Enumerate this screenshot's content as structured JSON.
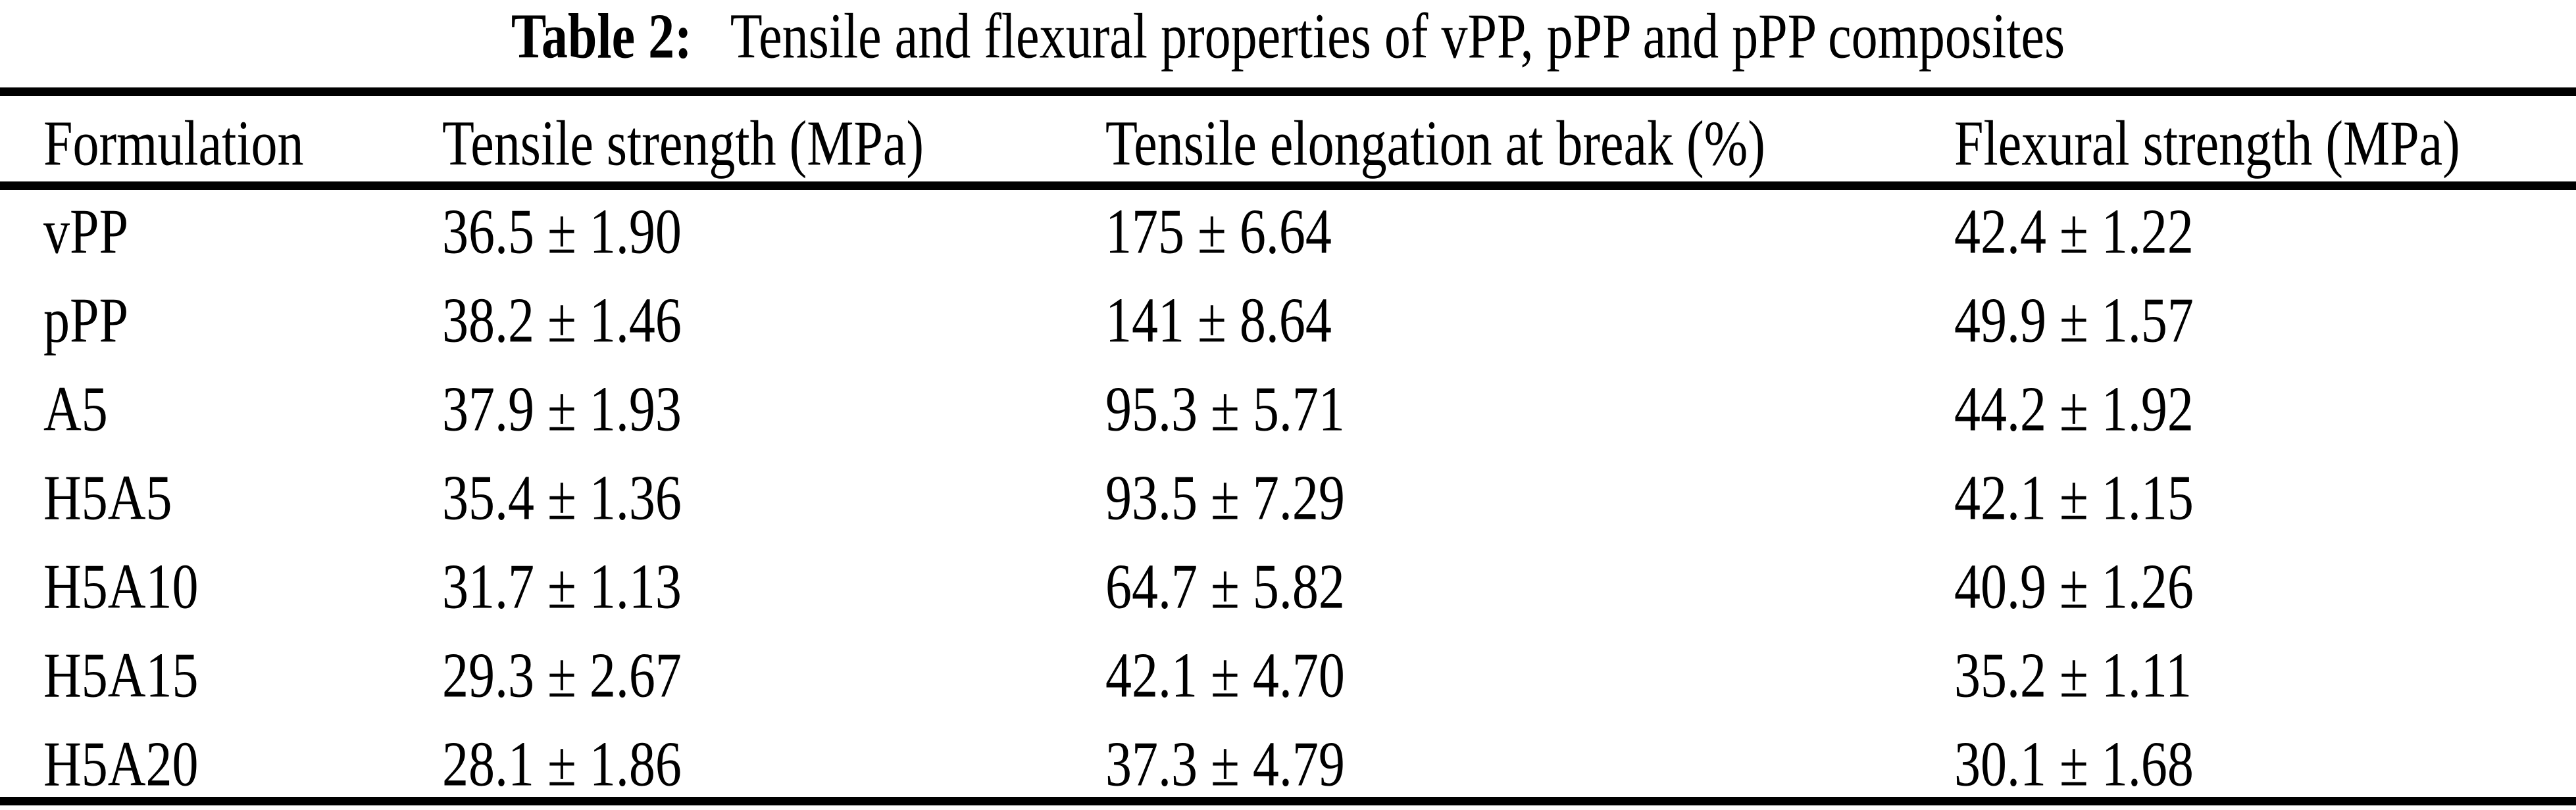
{
  "caption": {
    "label": "Table 2:",
    "text": "Tensile and flexural properties of vPP, pPP and pPP composites"
  },
  "table": {
    "columns": {
      "formulation": "Formulation",
      "tensile_strength": "Tensile strength (MPa)",
      "tensile_elongation": "Tensile elongation at break (%)",
      "flexural_strength": "Flexural strength (MPa)"
    },
    "rows": [
      {
        "formulation": "vPP",
        "tensile_strength": "36.5 ± 1.90",
        "tensile_elongation": "175 ± 6.64",
        "flexural_strength": "42.4 ± 1.22"
      },
      {
        "formulation": "pPP",
        "tensile_strength": "38.2 ± 1.46",
        "tensile_elongation": "141 ± 8.64",
        "flexural_strength": "49.9 ± 1.57"
      },
      {
        "formulation": "A5",
        "tensile_strength": "37.9 ± 1.93",
        "tensile_elongation": "95.3 ± 5.71",
        "flexural_strength": "44.2 ± 1.92"
      },
      {
        "formulation": "H5A5",
        "tensile_strength": "35.4 ± 1.36",
        "tensile_elongation": "93.5 ± 7.29",
        "flexural_strength": "42.1 ± 1.15"
      },
      {
        "formulation": "H5A10",
        "tensile_strength": "31.7 ± 1.13",
        "tensile_elongation": "64.7 ± 5.82",
        "flexural_strength": "40.9 ± 1.26"
      },
      {
        "formulation": "H5A15",
        "tensile_strength": "29.3 ± 2.67",
        "tensile_elongation": "42.1 ± 4.70",
        "flexural_strength": "35.2 ± 1.11"
      },
      {
        "formulation": "H5A20",
        "tensile_strength": "28.1 ± 1.86",
        "tensile_elongation": "37.3 ± 4.79",
        "flexural_strength": "30.1 ± 1.68"
      }
    ]
  },
  "chart_data": {
    "type": "table",
    "title": "Table 2: Tensile and flexural properties of vPP, pPP and pPP composites",
    "columns": [
      "Formulation",
      "Tensile strength (MPa)",
      "Tensile elongation at break (%)",
      "Flexural strength (MPa)"
    ],
    "formulations": [
      "vPP",
      "pPP",
      "A5",
      "H5A5",
      "H5A10",
      "H5A15",
      "H5A20"
    ],
    "series": [
      {
        "name": "Tensile strength (MPa)",
        "values": [
          36.5,
          38.2,
          37.9,
          35.4,
          31.7,
          29.3,
          28.1
        ],
        "errors": [
          1.9,
          1.46,
          1.93,
          1.36,
          1.13,
          2.67,
          1.86
        ]
      },
      {
        "name": "Tensile elongation at break (%)",
        "values": [
          175,
          141,
          95.3,
          93.5,
          64.7,
          42.1,
          37.3
        ],
        "errors": [
          6.64,
          8.64,
          5.71,
          7.29,
          5.82,
          4.7,
          4.79
        ]
      },
      {
        "name": "Flexural strength (MPa)",
        "values": [
          42.4,
          49.9,
          44.2,
          42.1,
          40.9,
          35.2,
          30.1
        ],
        "errors": [
          1.22,
          1.57,
          1.92,
          1.15,
          1.26,
          1.11,
          1.68
        ]
      }
    ]
  },
  "colors": {
    "background": "#ffffff",
    "text": "#000000",
    "rule": "#000000"
  }
}
